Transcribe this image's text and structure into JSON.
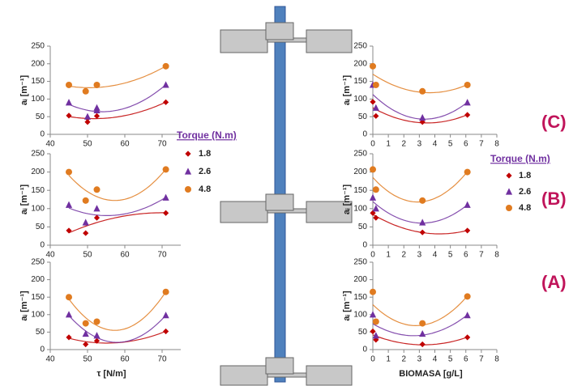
{
  "panel_labels": [
    "(C)",
    "(B)",
    "(A)"
  ],
  "chart_data": [
    {
      "type": "scatter",
      "ylabel": "aᵢ [m⁻¹]",
      "xlim": [
        40,
        75
      ],
      "xticks": [
        40,
        50,
        60,
        70
      ],
      "ylim": [
        0,
        250
      ],
      "yticks": [
        0,
        50,
        100,
        150,
        200,
        250
      ],
      "series": [
        {
          "name": "1.8",
          "color": "#c00000",
          "marker": "diamond",
          "x": [
            45,
            50,
            50,
            52.5,
            71
          ],
          "values": [
            53,
            45,
            35,
            52,
            91
          ]
        },
        {
          "name": "2.6",
          "color": "#7030a0",
          "marker": "triangle",
          "x": [
            45,
            50,
            52.5,
            52.5,
            71
          ],
          "values": [
            90,
            50,
            75,
            68,
            140
          ]
        },
        {
          "name": "4.8",
          "color": "#e07b20",
          "marker": "circle",
          "x": [
            45,
            49.5,
            52.5,
            71
          ],
          "values": [
            140,
            122,
            140,
            193
          ]
        }
      ]
    },
    {
      "type": "scatter",
      "ylabel": "aᵢ [m⁻¹]",
      "xlim": [
        40,
        75
      ],
      "xticks": [
        40,
        50,
        60,
        70
      ],
      "ylim": [
        0,
        250
      ],
      "yticks": [
        0,
        50,
        100,
        150,
        200,
        250
      ],
      "legend_title": "Torque (N.m)",
      "series": [
        {
          "name": "1.8",
          "color": "#c00000",
          "marker": "diamond",
          "x": [
            45,
            49.5,
            52.5,
            71
          ],
          "values": [
            40,
            33,
            75,
            88
          ]
        },
        {
          "name": "2.6",
          "color": "#7030a0",
          "marker": "triangle",
          "x": [
            45,
            49.5,
            52.5,
            71
          ],
          "values": [
            110,
            62,
            100,
            130
          ]
        },
        {
          "name": "4.8",
          "color": "#e07b20",
          "marker": "circle",
          "x": [
            45,
            49.5,
            52.5,
            71
          ],
          "values": [
            200,
            122,
            152,
            207
          ]
        }
      ]
    },
    {
      "type": "scatter",
      "ylabel": "aᵢ [m⁻¹]",
      "xlabel": "τ  [N/m]",
      "xlim": [
        40,
        75
      ],
      "xticks": [
        40,
        50,
        60,
        70
      ],
      "ylim": [
        0,
        250
      ],
      "yticks": [
        0,
        50,
        100,
        150,
        200,
        250
      ],
      "series": [
        {
          "name": "1.8",
          "color": "#c00000",
          "marker": "diamond",
          "x": [
            45,
            49.5,
            52.5,
            71
          ],
          "values": [
            35,
            15,
            25,
            52
          ]
        },
        {
          "name": "2.6",
          "color": "#7030a0",
          "marker": "triangle",
          "x": [
            45,
            49.5,
            52.5,
            71
          ],
          "values": [
            100,
            45,
            40,
            98
          ]
        },
        {
          "name": "4.8",
          "color": "#e07b20",
          "marker": "circle",
          "x": [
            45,
            49.5,
            52.5,
            71
          ],
          "values": [
            150,
            75,
            80,
            165
          ]
        }
      ]
    },
    {
      "type": "scatter",
      "ylabel": "aᵢ [m⁻¹]",
      "xlim": [
        0,
        8
      ],
      "xticks": [
        0,
        1,
        2,
        3,
        4,
        5,
        6,
        7,
        8
      ],
      "ylim": [
        0,
        250
      ],
      "yticks": [
        0,
        50,
        100,
        150,
        200,
        250
      ],
      "series": [
        {
          "name": "1.8",
          "color": "#c00000",
          "marker": "diamond",
          "x": [
            0,
            0.2,
            3.2,
            6.1
          ],
          "values": [
            92,
            52,
            35,
            55
          ]
        },
        {
          "name": "2.6",
          "color": "#7030a0",
          "marker": "triangle",
          "x": [
            0,
            0.2,
            3.2,
            6.1
          ],
          "values": [
            140,
            75,
            47,
            90
          ]
        },
        {
          "name": "4.8",
          "color": "#e07b20",
          "marker": "circle",
          "x": [
            0,
            0.2,
            3.2,
            6.1
          ],
          "values": [
            193,
            140,
            122,
            140
          ]
        }
      ]
    },
    {
      "type": "scatter",
      "ylabel": "aᵢ [m⁻¹]",
      "xlim": [
        0,
        8
      ],
      "xticks": [
        0,
        1,
        2,
        3,
        4,
        5,
        6,
        7,
        8
      ],
      "ylim": [
        0,
        250
      ],
      "yticks": [
        0,
        50,
        100,
        150,
        200,
        250
      ],
      "legend_title": "Torque (N.m)",
      "series": [
        {
          "name": "1.8",
          "color": "#c00000",
          "marker": "diamond",
          "x": [
            0,
            0.2,
            3.2,
            6.1
          ],
          "values": [
            88,
            75,
            35,
            40
          ]
        },
        {
          "name": "2.6",
          "color": "#7030a0",
          "marker": "triangle",
          "x": [
            0,
            0.2,
            3.2,
            6.1
          ],
          "values": [
            130,
            100,
            62,
            110
          ]
        },
        {
          "name": "4.8",
          "color": "#e07b20",
          "marker": "circle",
          "x": [
            0,
            0.2,
            3.2,
            6.1
          ],
          "values": [
            207,
            152,
            122,
            200
          ]
        }
      ]
    },
    {
      "type": "scatter",
      "ylabel": "aᵢ [m⁻¹]",
      "xlabel": "BIOMASA [g/L]",
      "xlim": [
        0,
        8
      ],
      "xticks": [
        0,
        1,
        2,
        3,
        4,
        5,
        6,
        7,
        8
      ],
      "ylim": [
        0,
        250
      ],
      "yticks": [
        0,
        50,
        100,
        150,
        200,
        250
      ],
      "series": [
        {
          "name": "1.8",
          "color": "#c00000",
          "marker": "diamond",
          "x": [
            0,
            0.2,
            3.2,
            6.1
          ],
          "values": [
            52,
            28,
            15,
            35
          ]
        },
        {
          "name": "2.6",
          "color": "#7030a0",
          "marker": "triangle",
          "x": [
            0,
            0.2,
            3.2,
            6.1
          ],
          "values": [
            100,
            40,
            45,
            98
          ]
        },
        {
          "name": "4.8",
          "color": "#e07b20",
          "marker": "circle",
          "x": [
            0,
            0.2,
            3.2,
            6.1
          ],
          "values": [
            165,
            80,
            75,
            152
          ]
        }
      ]
    }
  ]
}
